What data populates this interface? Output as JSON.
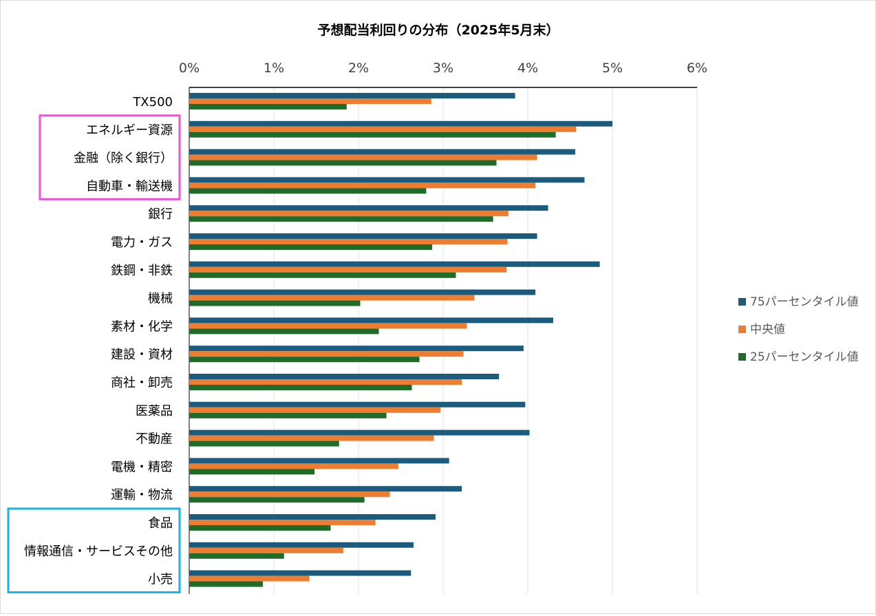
{
  "chart_data": {
    "type": "bar",
    "orientation": "horizontal",
    "title": "予想配当利回りの分布（2025年5月末）",
    "xlim": [
      0,
      6
    ],
    "x_ticks": [
      "0%",
      "1%",
      "2%",
      "3%",
      "4%",
      "5%",
      "6%"
    ],
    "x_axis_position": "top",
    "grid": true,
    "legend_position": "right",
    "categories": [
      "TX500",
      "エネルギー資源",
      "金融（除く銀行）",
      "自動車・輸送機",
      "銀行",
      "電力・ガス",
      "鉄鋼・非鉄",
      "機械",
      "素材・化学",
      "建設・資材",
      "商社・卸売",
      "医薬品",
      "不動産",
      "電機・精密",
      "運輸・物流",
      "食品",
      "情報通信・サービスその他",
      "小売"
    ],
    "series": [
      {
        "name": "75パーセンタイル値",
        "color": "#1b5b7e",
        "values": [
          3.85,
          5.0,
          4.56,
          4.67,
          4.24,
          4.11,
          4.85,
          4.09,
          4.3,
          3.95,
          3.66,
          3.97,
          4.02,
          3.07,
          3.22,
          2.91,
          2.65,
          2.62
        ]
      },
      {
        "name": "中央値",
        "color": "#ed7d31",
        "values": [
          2.86,
          4.57,
          4.11,
          4.09,
          3.77,
          3.76,
          3.75,
          3.37,
          3.28,
          3.24,
          3.22,
          2.97,
          2.89,
          2.47,
          2.37,
          2.2,
          1.82,
          1.42
        ]
      },
      {
        "name": "25パーセンタイル値",
        "color": "#1e6b2a",
        "values": [
          1.86,
          4.33,
          3.63,
          2.8,
          3.59,
          2.87,
          3.15,
          2.02,
          2.24,
          2.72,
          2.63,
          2.33,
          1.77,
          1.48,
          2.07,
          1.67,
          1.12,
          0.87
        ]
      }
    ],
    "highlights": [
      {
        "categories": [
          "エネルギー資源",
          "金融（除く銀行）",
          "自動車・輸送機"
        ],
        "color": "#e655d4"
      },
      {
        "categories": [
          "食品",
          "情報通信・サービスその他",
          "小売"
        ],
        "color": "#1ab0e8"
      }
    ]
  }
}
